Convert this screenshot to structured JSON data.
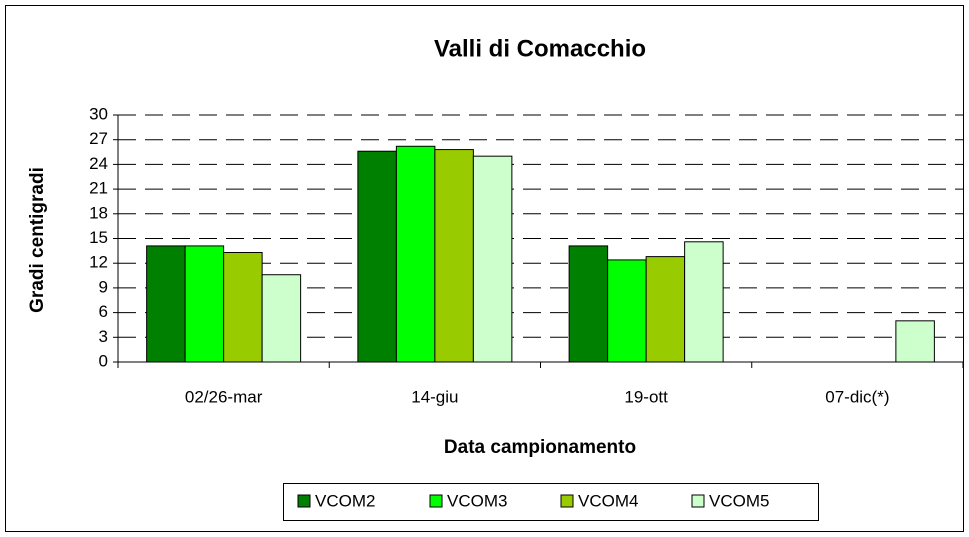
{
  "chart_data": {
    "type": "bar",
    "title": "Valli di Comacchio",
    "x_label": "Data campionamento",
    "y_label": "Gradi centigradi",
    "categories": [
      "02/26-mar",
      "14-giu",
      "19-ott",
      "07-dic(*)"
    ],
    "series": [
      {
        "name": "VCOM2",
        "color": "#008000",
        "values": [
          14.1,
          25.6,
          14.1,
          null
        ]
      },
      {
        "name": "VCOM3",
        "color": "#00ff00",
        "values": [
          14.1,
          26.2,
          12.4,
          null
        ]
      },
      {
        "name": "VCOM4",
        "color": "#99cc00",
        "values": [
          13.3,
          25.8,
          12.8,
          null
        ]
      },
      {
        "name": "VCOM5",
        "color": "#ccffcc",
        "values": [
          10.6,
          25.0,
          14.6,
          5.0
        ]
      }
    ],
    "ylim": [
      0,
      30
    ],
    "yticks": [
      0,
      3,
      6,
      9,
      12,
      15,
      18,
      21,
      24,
      27,
      30
    ],
    "grid": true,
    "legend": "bottom"
  }
}
